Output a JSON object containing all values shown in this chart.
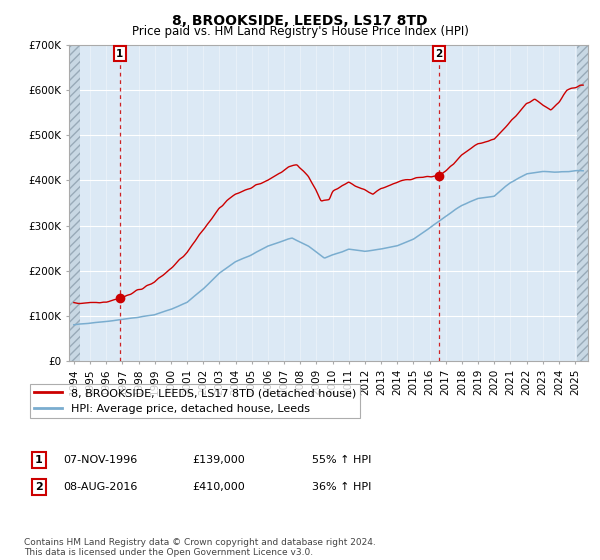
{
  "title": "8, BROOKSIDE, LEEDS, LS17 8TD",
  "subtitle": "Price paid vs. HM Land Registry's House Price Index (HPI)",
  "ylim": [
    0,
    700000
  ],
  "yticks": [
    0,
    100000,
    200000,
    300000,
    400000,
    500000,
    600000,
    700000
  ],
  "ytick_labels": [
    "£0",
    "£100K",
    "£200K",
    "£300K",
    "£400K",
    "£500K",
    "£600K",
    "£700K"
  ],
  "sale1_date": 1996.85,
  "sale1_price": 139000,
  "sale1_label": "07-NOV-1996",
  "sale1_amount": "£139,000",
  "sale1_pct": "55% ↑ HPI",
  "sale2_date": 2016.59,
  "sale2_price": 410000,
  "sale2_label": "08-AUG-2016",
  "sale2_amount": "£410,000",
  "sale2_pct": "36% ↑ HPI",
  "hpi_line_color": "#7aadcf",
  "price_line_color": "#cc0000",
  "dot_color": "#cc0000",
  "vline_color": "#cc0000",
  "chart_bg_color": "#dce9f5",
  "hatch_color": "#b8c8d8",
  "grid_color": "#aaaaaa",
  "legend_label_price": "8, BROOKSIDE, LEEDS, LS17 8TD (detached house)",
  "legend_label_hpi": "HPI: Average price, detached house, Leeds",
  "footer": "Contains HM Land Registry data © Crown copyright and database right 2024.\nThis data is licensed under the Open Government Licence v3.0.",
  "title_fontsize": 10,
  "subtitle_fontsize": 8.5,
  "tick_fontsize": 7.5,
  "legend_fontsize": 8
}
